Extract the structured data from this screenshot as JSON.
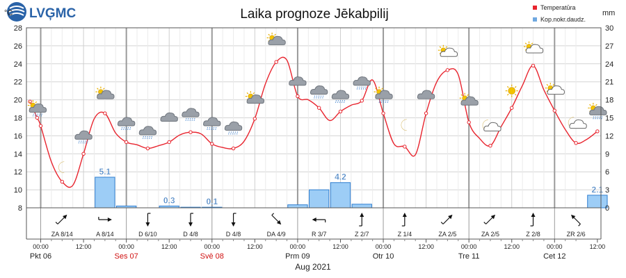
{
  "logo": {
    "text": "LVĢMC"
  },
  "chart_data": {
    "type": "line",
    "title": "Laika prognoze Jēkabpilij",
    "y_left": {
      "unit": "°C",
      "min": 8,
      "max": 28,
      "ticks": [
        28,
        26,
        24,
        22,
        20,
        18,
        16,
        14,
        12,
        10,
        8
      ]
    },
    "y_right": {
      "unit": "mm",
      "min": 0,
      "max": 30,
      "ticks": [
        30,
        27,
        24,
        21,
        18,
        15,
        12,
        9,
        6,
        3,
        0
      ]
    },
    "legend": [
      {
        "label": "Temperatūra",
        "color": "#e8242e"
      },
      {
        "label": "Kop.nokr.daudz.",
        "color": "#6fa8e0"
      }
    ],
    "legend_position": "top-right",
    "grid": true,
    "x_label": "Aug 2021",
    "x_range_hours": [
      -4,
      157
    ],
    "day_labels": [
      {
        "label": "Pkt 06",
        "hour": 0,
        "color": "#222"
      },
      {
        "label": "Ses 07",
        "hour": 24,
        "color": "#d01010"
      },
      {
        "label": "Svē 08",
        "hour": 48,
        "color": "#d01010"
      },
      {
        "label": "Prm 09",
        "hour": 72,
        "color": "#222"
      },
      {
        "label": "Otr 10",
        "hour": 96,
        "color": "#222"
      },
      {
        "label": "Tre 11",
        "hour": 120,
        "color": "#222"
      },
      {
        "label": "Cet 12",
        "hour": 144,
        "color": "#222"
      }
    ],
    "time_ticks": [
      "00:00",
      "12:00",
      "00:00",
      "12:00",
      "00:00",
      "12:00",
      "00:00",
      "12:00",
      "00:00",
      "12:00",
      "00:00",
      "12:00",
      "00:00",
      "12:00"
    ],
    "series": [
      {
        "name": "Temperatūra",
        "color": "#e8242e",
        "x_hours": [
          -3,
          -1,
          0,
          3,
          6,
          9,
          12,
          15,
          18,
          21,
          24,
          27,
          30,
          33,
          36,
          39,
          42,
          45,
          48,
          51,
          54,
          57,
          60,
          63,
          66,
          69,
          72,
          75,
          78,
          81,
          84,
          87,
          90,
          93,
          96,
          99,
          102,
          105,
          108,
          111,
          114,
          117,
          120,
          123,
          126,
          129,
          132,
          135,
          138,
          141,
          144,
          147,
          150,
          153,
          156
        ],
        "values": [
          19.8,
          18.0,
          17.1,
          13.1,
          10.9,
          10.5,
          14.0,
          17.9,
          18.5,
          16.3,
          15.3,
          15.0,
          14.6,
          14.9,
          15.3,
          16.1,
          16.4,
          16.2,
          15.1,
          14.7,
          14.6,
          15.4,
          17.9,
          21.8,
          24.2,
          24.4,
          20.4,
          20.0,
          19.1,
          17.7,
          18.7,
          19.4,
          19.9,
          22.2,
          18.5,
          15.1,
          14.8,
          13.9,
          18.5,
          22.0,
          23.3,
          22.8,
          17.5,
          15.7,
          14.9,
          17.0,
          19.1,
          21.6,
          23.8,
          21.1,
          18.8,
          16.7,
          15.2,
          15.6,
          16.5
        ]
      },
      {
        "name": "Kop.nokr.daudz.",
        "type": "bar",
        "color": "#9dcdf6",
        "bars": [
          {
            "hour": 18,
            "value": 5.1,
            "label": "5.1"
          },
          {
            "hour": 24,
            "value": 0.3,
            "label": ""
          },
          {
            "hour": 36,
            "value": 0.3,
            "label": "0.3"
          },
          {
            "hour": 42,
            "value": 0.1,
            "label": ""
          },
          {
            "hour": 48,
            "value": 0.1,
            "label": "0.1"
          },
          {
            "hour": 72,
            "value": 0.5,
            "label": ""
          },
          {
            "hour": 78,
            "value": 3.0,
            "label": ""
          },
          {
            "hour": 84,
            "value": 4.2,
            "label": "4.2"
          },
          {
            "hour": 90,
            "value": 0.6,
            "label": ""
          },
          {
            "hour": 156,
            "value": 2.1,
            "label": "2.1"
          }
        ]
      }
    ],
    "weather_icons": [
      {
        "hour": -1,
        "temp": 19.0,
        "icon": "sun-cloud-rain"
      },
      {
        "hour": 6,
        "temp": 12.5,
        "icon": "moon"
      },
      {
        "hour": 12,
        "temp": 16.0,
        "icon": "cloud-rain"
      },
      {
        "hour": 18,
        "temp": 20.5,
        "icon": "sun-cloud"
      },
      {
        "hour": 24,
        "temp": 17.5,
        "icon": "cloud-rain"
      },
      {
        "hour": 30,
        "temp": 16.5,
        "icon": "cloud-rain"
      },
      {
        "hour": 36,
        "temp": 18.0,
        "icon": "cloud"
      },
      {
        "hour": 42,
        "temp": 18.5,
        "icon": "cloud-rain"
      },
      {
        "hour": 48,
        "temp": 17.5,
        "icon": "cloud-rain"
      },
      {
        "hour": 54,
        "temp": 17.0,
        "icon": "cloud-rain"
      },
      {
        "hour": 60,
        "temp": 20.0,
        "icon": "sun-cloud"
      },
      {
        "hour": 66,
        "temp": 26.5,
        "icon": "sun-cloud"
      },
      {
        "hour": 72,
        "temp": 22.0,
        "icon": "cloud"
      },
      {
        "hour": 78,
        "temp": 21.0,
        "icon": "cloud-rain"
      },
      {
        "hour": 84,
        "temp": 20.5,
        "icon": "cloud-rain"
      },
      {
        "hour": 90,
        "temp": 22.0,
        "icon": "cloud-rain"
      },
      {
        "hour": 96,
        "temp": 20.5,
        "icon": "sun-cloud-rain"
      },
      {
        "hour": 102,
        "temp": 17.2,
        "icon": "moon"
      },
      {
        "hour": 108,
        "temp": 20.5,
        "icon": "cloud"
      },
      {
        "hour": 114,
        "temp": 25.2,
        "icon": "sun-cloud-outline"
      },
      {
        "hour": 120,
        "temp": 19.8,
        "icon": "sun-cloud"
      },
      {
        "hour": 126,
        "temp": 17.0,
        "icon": "moon-cloud-outline"
      },
      {
        "hour": 132,
        "temp": 21.0,
        "icon": "sun"
      },
      {
        "hour": 138,
        "temp": 25.6,
        "icon": "sun-cloud-outline"
      },
      {
        "hour": 144,
        "temp": 21.0,
        "icon": "sun-cloud-outline"
      },
      {
        "hour": 150,
        "temp": 17.3,
        "icon": "moon-cloud-outline"
      },
      {
        "hour": 156,
        "temp": 18.7,
        "icon": "sun-cloud-rain"
      }
    ],
    "wind": [
      {
        "hour": 6,
        "label": "ZA 8/14",
        "angle": 225
      },
      {
        "hour": 18,
        "label": "A 8/14",
        "angle": 270
      },
      {
        "hour": 30,
        "label": "D 6/10",
        "angle": 0
      },
      {
        "hour": 42,
        "label": "D 4/8",
        "angle": 0
      },
      {
        "hour": 54,
        "label": "D 4/8",
        "angle": 0
      },
      {
        "hour": 66,
        "label": "DA 4/9",
        "angle": 315
      },
      {
        "hour": 78,
        "label": "R 3/7",
        "angle": 90
      },
      {
        "hour": 90,
        "label": "Z 2/7",
        "angle": 180
      },
      {
        "hour": 102,
        "label": "Z 1/4",
        "angle": 180
      },
      {
        "hour": 114,
        "label": "ZA 2/5",
        "angle": 225
      },
      {
        "hour": 126,
        "label": "ZA 2/5",
        "angle": 225
      },
      {
        "hour": 138,
        "label": "Z 2/8",
        "angle": 180
      },
      {
        "hour": 150,
        "label": "ZR 2/6",
        "angle": 135
      }
    ]
  }
}
